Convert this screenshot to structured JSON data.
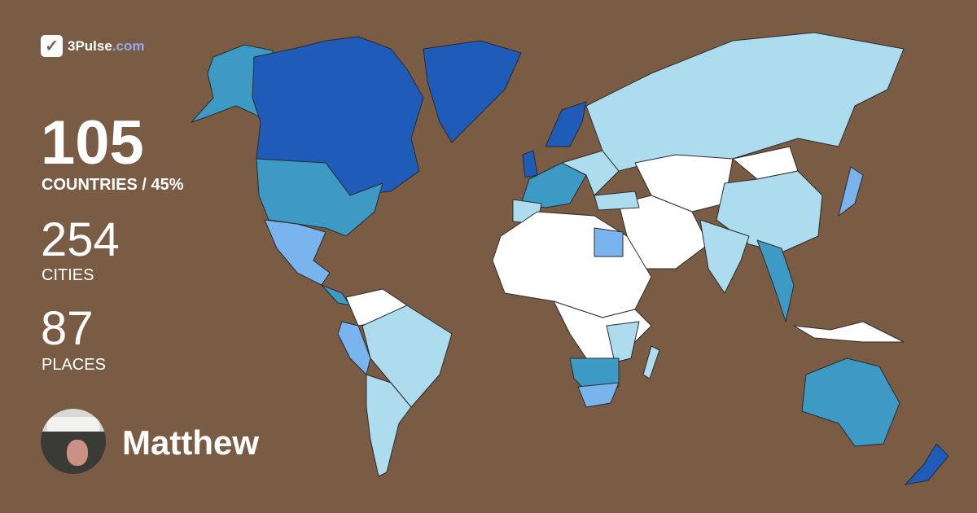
{
  "brand": {
    "logo_icon": "checkmark-pulse-icon",
    "name": "3Pulse",
    "tld": ".com"
  },
  "stats": {
    "countries_value": "105",
    "countries_label": "COUNTRIES / 45%",
    "countries_percent": 45,
    "cities_value": "254",
    "cities_label": "CITIES",
    "places_value": "87",
    "places_label": "PLACES"
  },
  "user": {
    "name": "Matthew",
    "avatar": "profile-photo"
  },
  "colors": {
    "background": "#7a5c45",
    "level_highest": "#1f5bb8",
    "level_high": "#3c9ac4",
    "level_medium": "#7ab4ee",
    "level_low": "#addcee",
    "unvisited": "#ffffff"
  }
}
